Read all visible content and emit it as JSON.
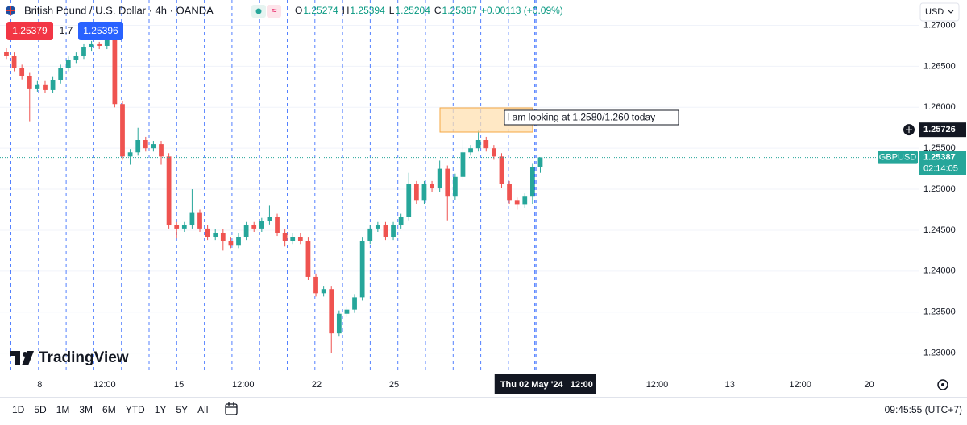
{
  "header": {
    "symbol": "British Pound / U.S. Dollar · 4h · OANDA",
    "ohlc": [
      {
        "key": "O",
        "value": "1.25274"
      },
      {
        "key": "H",
        "value": "1.25394"
      },
      {
        "key": "L",
        "value": "1.25204"
      },
      {
        "key": "C",
        "value": "1.25387"
      }
    ],
    "change": "+0.00113 (+0.09%)"
  },
  "trade": {
    "sell": "1.25379",
    "spread": "1.7",
    "buy": "1.25396"
  },
  "currency": "USD",
  "logo": "TradingView",
  "toolbar": {
    "ranges": [
      "1D",
      "5D",
      "1M",
      "3M",
      "6M",
      "YTD",
      "1Y",
      "5Y",
      "All"
    ],
    "clock": "09:45:55 (UTC+7)"
  },
  "chart_data": {
    "type": "candlestick",
    "open": [
      1.2668,
      1.2663,
      1.2648,
      1.2638,
      1.2623,
      1.2628,
      1.2621,
      1.2633,
      1.2648,
      1.2658,
      1.2663,
      1.2673,
      1.2677,
      1.2675,
      1.2682,
      1.2604,
      1.254,
      1.2545,
      1.256,
      1.255,
      1.2555,
      1.254,
      1.2456,
      1.2452,
      1.2456,
      1.2471,
      1.2452,
      1.2442,
      1.2447,
      1.2437,
      1.2432,
      1.2442,
      1.2456,
      1.2452,
      1.2461,
      1.2466,
      1.2447,
      1.2437,
      1.2442,
      1.2437,
      1.2393,
      1.2373,
      1.2378,
      1.2324,
      1.2348,
      1.2353,
      1.2368,
      1.2437,
      1.2452,
      1.2456,
      1.2442,
      1.2456,
      1.2466,
      1.2506,
      1.2486,
      1.2506,
      1.2501,
      1.2525,
      1.2491,
      1.2515,
      1.2545,
      1.255,
      1.256,
      1.255,
      1.254,
      1.2506,
      1.2486,
      1.2481,
      1.2491,
      1.2527
    ],
    "high": [
      1.2672,
      1.2667,
      1.2652,
      1.2642,
      1.2632,
      1.2632,
      1.2637,
      1.2652,
      1.2662,
      1.2667,
      1.2677,
      1.2681,
      1.268,
      1.2693,
      1.2686,
      1.2608,
      1.2549,
      1.2575,
      1.2564,
      1.2559,
      1.2559,
      1.2544,
      1.246,
      1.246,
      1.25,
      1.2475,
      1.2456,
      1.2451,
      1.2451,
      1.2441,
      1.2446,
      1.246,
      1.246,
      1.2465,
      1.248,
      1.247,
      1.2451,
      1.2446,
      1.2446,
      1.2441,
      1.2397,
      1.2382,
      1.2382,
      1.2352,
      1.2357,
      1.2372,
      1.2441,
      1.2456,
      1.246,
      1.246,
      1.246,
      1.247,
      1.252,
      1.251,
      1.251,
      1.251,
      1.2535,
      1.2529,
      1.2519,
      1.256,
      1.2554,
      1.2572,
      1.2564,
      1.2554,
      1.2544,
      1.251,
      1.249,
      1.2495,
      1.2531,
      1.2539
    ],
    "low": [
      1.2659,
      1.2644,
      1.2634,
      1.2583,
      1.2619,
      1.2617,
      1.2617,
      1.2629,
      1.2644,
      1.2654,
      1.2659,
      1.2669,
      1.2671,
      1.2671,
      1.26,
      1.2536,
      1.253,
      1.2541,
      1.2546,
      1.2546,
      1.253,
      1.2452,
      1.244,
      1.2448,
      1.2452,
      1.2448,
      1.2438,
      1.2438,
      1.2425,
      1.2428,
      1.2428,
      1.2438,
      1.2448,
      1.2448,
      1.2457,
      1.2443,
      1.243,
      1.2433,
      1.2433,
      1.2389,
      1.2369,
      1.2369,
      1.23,
      1.232,
      1.2344,
      1.2349,
      1.2364,
      1.2433,
      1.2448,
      1.2438,
      1.2438,
      1.2452,
      1.2462,
      1.2482,
      1.2482,
      1.2497,
      1.2497,
      1.2462,
      1.2487,
      1.2511,
      1.2541,
      1.2546,
      1.2546,
      1.2536,
      1.2502,
      1.2482,
      1.2475,
      1.2477,
      1.2482,
      1.252
    ],
    "close": [
      1.2663,
      1.2648,
      1.2638,
      1.2623,
      1.2628,
      1.2621,
      1.2633,
      1.2648,
      1.2658,
      1.2663,
      1.2673,
      1.2677,
      1.2675,
      1.2682,
      1.2604,
      1.254,
      1.2545,
      1.256,
      1.255,
      1.2555,
      1.254,
      1.2456,
      1.2452,
      1.2456,
      1.2471,
      1.2452,
      1.2442,
      1.2447,
      1.2437,
      1.2432,
      1.2442,
      1.2456,
      1.2452,
      1.2461,
      1.2466,
      1.2447,
      1.2437,
      1.2442,
      1.2437,
      1.2393,
      1.2373,
      1.2378,
      1.2324,
      1.2348,
      1.2353,
      1.2368,
      1.2437,
      1.2452,
      1.2456,
      1.2442,
      1.2456,
      1.2466,
      1.2506,
      1.2486,
      1.2506,
      1.2501,
      1.2525,
      1.2491,
      1.2515,
      1.2545,
      1.255,
      1.256,
      1.255,
      1.254,
      1.2506,
      1.2486,
      1.2481,
      1.2491,
      1.2527,
      1.2539
    ],
    "up_color": "#26a69a",
    "down_color": "#ef5350",
    "ylim": [
      1.2276,
      1.2731
    ],
    "yticks": [
      {
        "value": 1.23,
        "label": "1.23000"
      },
      {
        "value": 1.235,
        "label": "1.23500"
      },
      {
        "value": 1.24,
        "label": "1.24000"
      },
      {
        "value": 1.245,
        "label": "1.24500"
      },
      {
        "value": 1.25,
        "label": "1.25000"
      },
      {
        "value": 1.255,
        "label": "1.25500"
      },
      {
        "value": 1.26,
        "label": "1.26000"
      },
      {
        "value": 1.265,
        "label": "1.26500"
      },
      {
        "value": 1.27,
        "label": "1.27000"
      }
    ],
    "xlim": [
      -0.83,
      117.9
    ],
    "xticks": [
      {
        "value": 4.3,
        "label": "8"
      },
      {
        "value": 12.7,
        "label": "12:00"
      },
      {
        "value": 22.3,
        "label": "15"
      },
      {
        "value": 30.6,
        "label": "12:00"
      },
      {
        "value": 40.1,
        "label": "22"
      },
      {
        "value": 50.1,
        "label": "25"
      },
      {
        "value": 84.1,
        "label": "12:00"
      },
      {
        "value": 93.5,
        "label": "13"
      },
      {
        "value": 102.6,
        "label": "12:00"
      },
      {
        "value": 111.5,
        "label": "20"
      }
    ],
    "grid": true,
    "symbol_label": "GBPUSD",
    "last_price": 1.25387,
    "countdown": "02:14:05",
    "crosshair": {
      "x": 68.3,
      "date": "Thu 02 May '24",
      "time": "12:00",
      "price": 1.25726
    },
    "annotation": "I am looking at 1.2580/1.260 today"
  }
}
